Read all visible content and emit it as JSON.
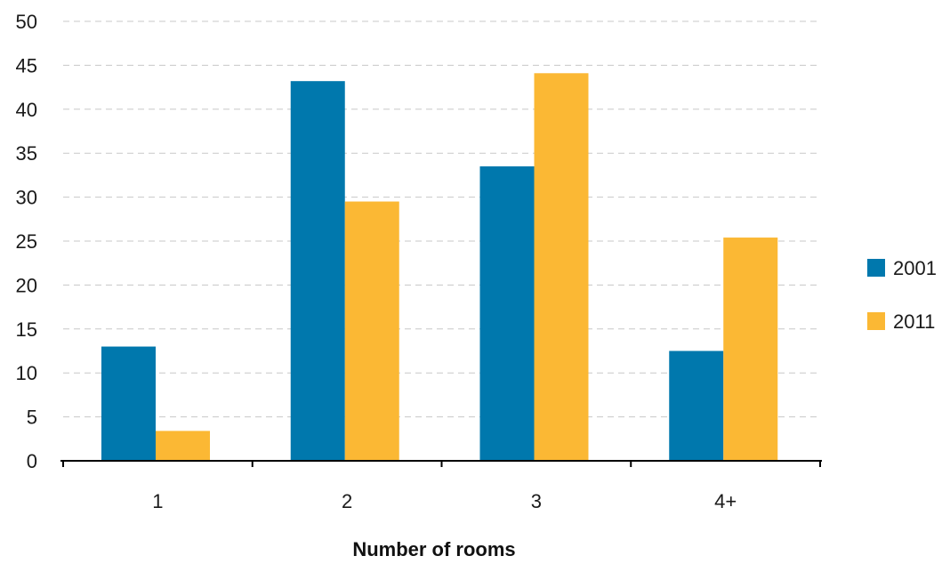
{
  "chart_data": {
    "type": "bar",
    "title": "",
    "xlabel": "Number of rooms",
    "ylabel": "",
    "categories": [
      "1",
      "2",
      "3",
      "4+"
    ],
    "ylim": [
      0,
      50
    ],
    "yticks": [
      0,
      5,
      10,
      15,
      20,
      25,
      30,
      35,
      40,
      45,
      50
    ],
    "grid": "horizontal dashed",
    "legend_position": "right",
    "series": [
      {
        "name": "2001",
        "color": "#0078ad",
        "values": [
          13.0,
          43.2,
          33.5,
          12.5
        ]
      },
      {
        "name": "2011",
        "color": "#fbb834",
        "values": [
          3.4,
          29.5,
          44.1,
          25.4
        ]
      }
    ]
  }
}
